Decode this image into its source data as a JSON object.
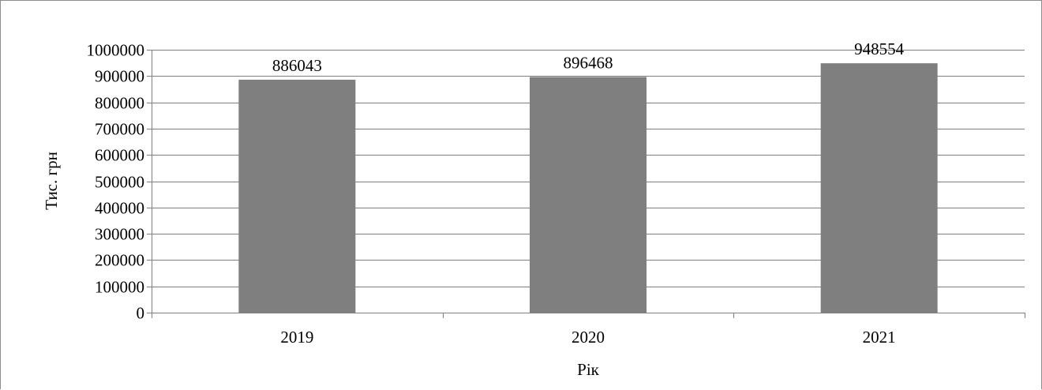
{
  "chart_data": {
    "type": "bar",
    "title": "",
    "xlabel": "Рік",
    "ylabel": "Тис. грн",
    "categories": [
      "2019",
      "2020",
      "2021"
    ],
    "values": [
      886043,
      896468,
      948554
    ],
    "data_labels": [
      "886043",
      "896468",
      "948554"
    ],
    "ylim": [
      0,
      1000000
    ],
    "yticks": [
      0,
      100000,
      200000,
      300000,
      400000,
      500000,
      600000,
      700000,
      800000,
      900000,
      1000000
    ],
    "ytick_labels": [
      "0",
      "100000",
      "200000",
      "300000",
      "400000",
      "500000",
      "600000",
      "700000",
      "800000",
      "900000",
      "1000000"
    ],
    "grid": true,
    "legend": "none",
    "bar_color": "#7f7f7f",
    "gridline_color": "#7f7f7f",
    "axis_color": "#7f7f7f"
  }
}
